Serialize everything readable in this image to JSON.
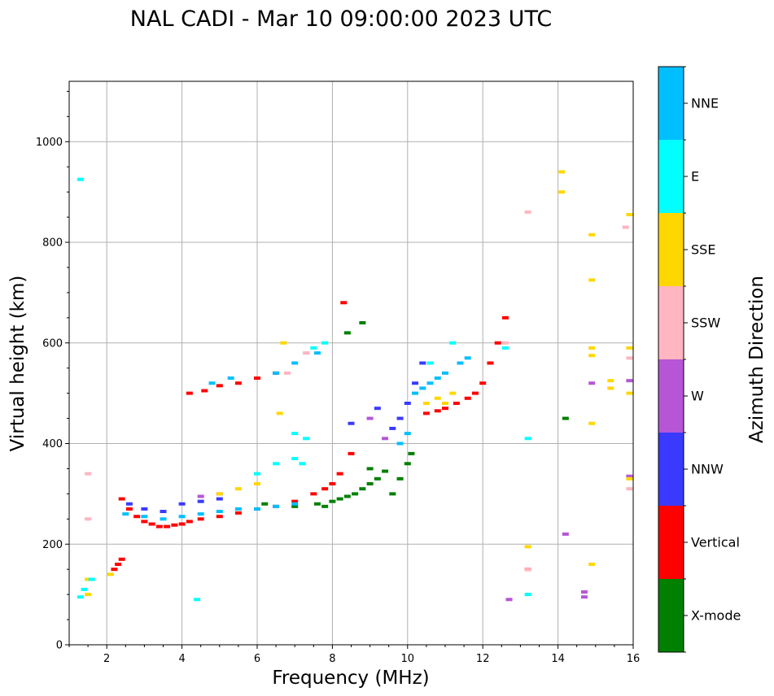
{
  "chart_data": {
    "type": "scatter",
    "title": "NAL CADI - Mar 10 09:00:00 2023 UTC",
    "xlabel": "Frequency (MHz)",
    "ylabel": "Virtual height (km)",
    "xlim": [
      1,
      16
    ],
    "ylim": [
      0,
      1120
    ],
    "x_ticks": [
      2,
      4,
      6,
      8,
      10,
      12,
      14,
      16
    ],
    "y_ticks": [
      0,
      200,
      400,
      600,
      800,
      1000
    ],
    "grid": true,
    "colorbar": {
      "label": "Azimuth Direction",
      "categories": [
        {
          "name": "X-mode",
          "color": "#008000"
        },
        {
          "name": "Vertical",
          "color": "#ff0000"
        },
        {
          "name": "NNW",
          "color": "#3a3aff"
        },
        {
          "name": "W",
          "color": "#b656d6"
        },
        {
          "name": "SSW",
          "color": "#ffb6c1"
        },
        {
          "name": "SSE",
          "color": "#ffd700"
        },
        {
          "name": "E",
          "color": "#00ffff"
        },
        {
          "name": "NNE",
          "color": "#00bfff"
        }
      ]
    },
    "series": [
      {
        "name": "X-mode",
        "points": [
          [
            7.6,
            280
          ],
          [
            7.8,
            275
          ],
          [
            8.0,
            285
          ],
          [
            8.2,
            290
          ],
          [
            8.4,
            295
          ],
          [
            8.6,
            300
          ],
          [
            8.8,
            310
          ],
          [
            9.0,
            320
          ],
          [
            9.2,
            330
          ],
          [
            9.4,
            345
          ],
          [
            9.6,
            300
          ],
          [
            9.8,
            330
          ],
          [
            10.0,
            360
          ],
          [
            10.1,
            380
          ],
          [
            9.0,
            350
          ],
          [
            8.8,
            640
          ],
          [
            8.4,
            620
          ],
          [
            14.2,
            450
          ],
          [
            6.2,
            280
          ],
          [
            7.0,
            275
          ]
        ]
      },
      {
        "name": "Vertical",
        "points": [
          [
            2.4,
            290
          ],
          [
            2.6,
            270
          ],
          [
            2.8,
            255
          ],
          [
            3.0,
            245
          ],
          [
            3.2,
            240
          ],
          [
            3.4,
            235
          ],
          [
            3.6,
            235
          ],
          [
            3.8,
            238
          ],
          [
            4.0,
            240
          ],
          [
            4.2,
            245
          ],
          [
            4.5,
            250
          ],
          [
            5.0,
            255
          ],
          [
            5.5,
            262
          ],
          [
            6.0,
            270
          ],
          [
            6.5,
            275
          ],
          [
            7.0,
            285
          ],
          [
            7.5,
            300
          ],
          [
            7.8,
            310
          ],
          [
            8.0,
            320
          ],
          [
            8.2,
            340
          ],
          [
            8.5,
            380
          ],
          [
            2.2,
            150
          ],
          [
            2.3,
            160
          ],
          [
            2.4,
            170
          ],
          [
            4.2,
            500
          ],
          [
            4.6,
            505
          ],
          [
            5.0,
            515
          ],
          [
            5.5,
            520
          ],
          [
            6.0,
            530
          ],
          [
            6.5,
            540
          ],
          [
            10.5,
            460
          ],
          [
            10.8,
            465
          ],
          [
            11.0,
            470
          ],
          [
            11.3,
            480
          ],
          [
            11.6,
            490
          ],
          [
            11.8,
            500
          ],
          [
            12.0,
            520
          ],
          [
            12.2,
            560
          ],
          [
            12.4,
            600
          ],
          [
            12.6,
            650
          ],
          [
            8.3,
            680
          ],
          [
            13.2,
            150
          ]
        ]
      },
      {
        "name": "NNW",
        "points": [
          [
            2.6,
            280
          ],
          [
            3.0,
            270
          ],
          [
            3.5,
            265
          ],
          [
            4.0,
            280
          ],
          [
            4.5,
            285
          ],
          [
            5.0,
            290
          ],
          [
            9.6,
            430
          ],
          [
            9.8,
            450
          ],
          [
            10.0,
            480
          ],
          [
            10.2,
            520
          ],
          [
            10.4,
            560
          ],
          [
            9.2,
            470
          ],
          [
            8.5,
            440
          ]
        ]
      },
      {
        "name": "W",
        "points": [
          [
            4.5,
            295
          ],
          [
            5.0,
            300
          ],
          [
            9.0,
            450
          ],
          [
            9.4,
            410
          ],
          [
            14.7,
            95
          ],
          [
            14.7,
            105
          ],
          [
            14.2,
            220
          ],
          [
            12.7,
            90
          ],
          [
            14.9,
            520
          ],
          [
            15.9,
            525
          ],
          [
            15.9,
            335
          ]
        ]
      },
      {
        "name": "SSW",
        "points": [
          [
            1.5,
            250
          ],
          [
            1.5,
            340
          ],
          [
            6.8,
            540
          ],
          [
            7.3,
            580
          ],
          [
            12.6,
            600
          ],
          [
            13.2,
            860
          ],
          [
            15.8,
            830
          ],
          [
            15.9,
            570
          ],
          [
            15.9,
            310
          ],
          [
            13.2,
            150
          ]
        ]
      },
      {
        "name": "SSE",
        "points": [
          [
            1.5,
            100
          ],
          [
            1.5,
            130
          ],
          [
            2.1,
            140
          ],
          [
            5.0,
            300
          ],
          [
            5.5,
            310
          ],
          [
            6.0,
            320
          ],
          [
            10.5,
            480
          ],
          [
            10.8,
            490
          ],
          [
            11.0,
            480
          ],
          [
            11.2,
            500
          ],
          [
            6.6,
            460
          ],
          [
            6.7,
            600
          ],
          [
            14.1,
            940
          ],
          [
            14.1,
            900
          ],
          [
            14.9,
            815
          ],
          [
            14.9,
            725
          ],
          [
            14.9,
            590
          ],
          [
            14.9,
            575
          ],
          [
            14.9,
            440
          ],
          [
            14.9,
            160
          ],
          [
            15.4,
            510
          ],
          [
            15.4,
            525
          ],
          [
            15.9,
            590
          ],
          [
            15.9,
            855
          ],
          [
            15.9,
            500
          ],
          [
            15.9,
            330
          ],
          [
            13.2,
            195
          ]
        ]
      },
      {
        "name": "E",
        "points": [
          [
            1.3,
            925
          ],
          [
            1.3,
            95
          ],
          [
            1.4,
            110
          ],
          [
            1.6,
            130
          ],
          [
            4.4,
            90
          ],
          [
            6.0,
            340
          ],
          [
            6.5,
            360
          ],
          [
            7.0,
            370
          ],
          [
            7.2,
            360
          ],
          [
            7.0,
            420
          ],
          [
            7.3,
            410
          ],
          [
            10.6,
            560
          ],
          [
            11.2,
            600
          ],
          [
            12.6,
            590
          ],
          [
            13.2,
            100
          ],
          [
            13.2,
            410
          ],
          [
            7.5,
            590
          ],
          [
            7.8,
            600
          ]
        ]
      },
      {
        "name": "NNE",
        "points": [
          [
            2.5,
            260
          ],
          [
            3.0,
            255
          ],
          [
            3.5,
            250
          ],
          [
            4.0,
            255
          ],
          [
            4.5,
            260
          ],
          [
            5.0,
            265
          ],
          [
            5.5,
            270
          ],
          [
            6.0,
            270
          ],
          [
            6.5,
            275
          ],
          [
            7.0,
            280
          ],
          [
            9.8,
            400
          ],
          [
            10.0,
            420
          ],
          [
            10.2,
            500
          ],
          [
            10.4,
            510
          ],
          [
            10.6,
            520
          ],
          [
            10.8,
            530
          ],
          [
            11.0,
            540
          ],
          [
            11.4,
            560
          ],
          [
            11.6,
            570
          ],
          [
            4.8,
            520
          ],
          [
            5.3,
            530
          ],
          [
            6.5,
            540
          ],
          [
            7.0,
            560
          ],
          [
            7.6,
            580
          ]
        ]
      }
    ]
  }
}
